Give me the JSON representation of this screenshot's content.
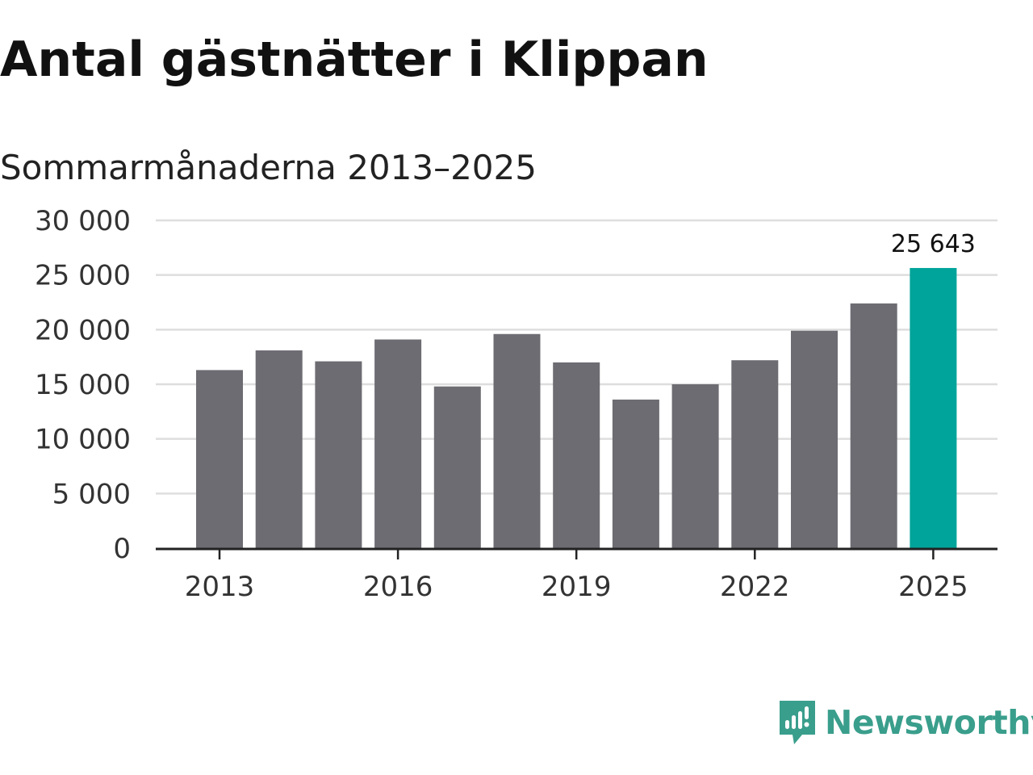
{
  "title": "Antal gästnätter i Klippan",
  "subtitle": "Sommarmånaderna 2013–2025",
  "brand": {
    "name": "Newsworthy",
    "icon": "newsworthy-logo-icon",
    "color": "#3a9e8c"
  },
  "colors": {
    "bar": "#6d6c72",
    "highlight": "#00a49a",
    "grid": "#dedede",
    "axis": "#222222"
  },
  "chart_data": {
    "type": "bar",
    "title": "Antal gästnätter i Klippan",
    "subtitle": "Sommarmånaderna 2013–2025",
    "xlabel": "",
    "ylabel": "",
    "categories": [
      "2013",
      "2014",
      "2015",
      "2016",
      "2017",
      "2018",
      "2019",
      "2020",
      "2021",
      "2022",
      "2023",
      "2024",
      "2025"
    ],
    "values": [
      16300,
      18100,
      17100,
      19100,
      14800,
      19600,
      17000,
      13600,
      15000,
      17200,
      19900,
      22400,
      25643
    ],
    "highlight_index": 12,
    "value_label": "25 643",
    "x_tick_labels": [
      "2013",
      "2016",
      "2019",
      "2022",
      "2025"
    ],
    "y_ticks": [
      0,
      5000,
      10000,
      15000,
      20000,
      25000,
      30000
    ],
    "y_tick_labels": [
      "0",
      "5 000",
      "10 000",
      "15 000",
      "20 000",
      "25 000",
      "30 000"
    ],
    "ylim": [
      0,
      30000
    ],
    "grid": true,
    "legend": "none"
  }
}
